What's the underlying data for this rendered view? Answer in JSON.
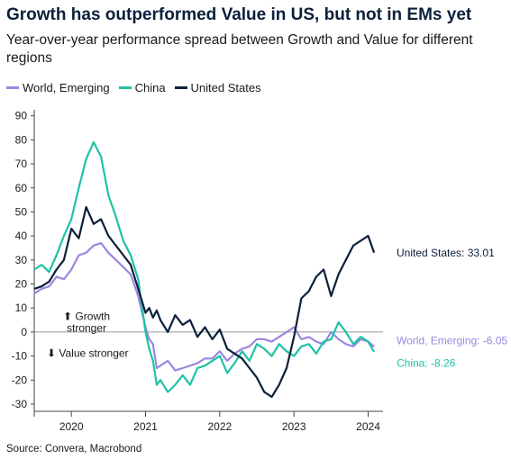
{
  "header": {
    "title": "Growth has outperformed Value in US, but not in EMs yet",
    "subtitle": "Year-over-year performance spread between Growth and Value for different regions",
    "source": "Source: Convera, Macrobond"
  },
  "chart_data": {
    "type": "line",
    "title": "Growth has outperformed Value in US, but not in EMs yet",
    "subtitle": "Year-over-year performance spread between Growth and Value for different regions",
    "xlabel": "",
    "ylabel": "",
    "xlim": [
      2019.5,
      2024.2
    ],
    "ylim": [
      -33,
      91
    ],
    "yticks": [
      90,
      80,
      70,
      60,
      50,
      40,
      30,
      20,
      10,
      0,
      -10,
      -20,
      -30
    ],
    "xticks": [
      "2020",
      "2021",
      "2022",
      "2023",
      "2024"
    ],
    "grid": false,
    "legend_position": "top-left",
    "annotations": {
      "growth_stronger": "Growth stronger",
      "value_stronger": "Value stronger",
      "us_end_label": "United States: 33.01",
      "em_end_label": "World, Emerging: -6.05",
      "china_end_label": "China: -8.26"
    },
    "series": [
      {
        "name": "World, Emerging",
        "color": "#9b87e0",
        "x": [
          2019.5,
          2019.6,
          2019.7,
          2019.8,
          2019.9,
          2020.0,
          2020.1,
          2020.2,
          2020.3,
          2020.4,
          2020.5,
          2020.6,
          2020.7,
          2020.8,
          2020.9,
          2021.0,
          2021.05,
          2021.1,
          2021.15,
          2021.2,
          2021.3,
          2021.4,
          2021.5,
          2021.6,
          2021.7,
          2021.8,
          2021.9,
          2022.0,
          2022.1,
          2022.2,
          2022.3,
          2022.4,
          2022.5,
          2022.6,
          2022.7,
          2022.8,
          2022.9,
          2023.0,
          2023.1,
          2023.2,
          2023.3,
          2023.4,
          2023.5,
          2023.6,
          2023.7,
          2023.8,
          2023.9,
          2024.0,
          2024.08
        ],
        "values": [
          16,
          18,
          19,
          23,
          22,
          26,
          32,
          33,
          36,
          37,
          33,
          30,
          27,
          24,
          15,
          2,
          -3,
          -5,
          -15,
          -14,
          -12,
          -16,
          -15,
          -14,
          -13,
          -11,
          -11,
          -8,
          -12,
          -9,
          -7,
          -6,
          -3,
          -3,
          -4,
          -2,
          0,
          2,
          -3,
          -2,
          -4,
          -5,
          0,
          -3,
          -5,
          -6,
          -3,
          -4,
          -6.05
        ]
      },
      {
        "name": "China",
        "color": "#1fc2a5",
        "x": [
          2019.5,
          2019.6,
          2019.7,
          2019.8,
          2019.9,
          2020.0,
          2020.1,
          2020.2,
          2020.3,
          2020.4,
          2020.5,
          2020.6,
          2020.7,
          2020.8,
          2020.9,
          2021.0,
          2021.05,
          2021.1,
          2021.15,
          2021.2,
          2021.3,
          2021.4,
          2021.5,
          2021.6,
          2021.7,
          2021.8,
          2021.9,
          2022.0,
          2022.1,
          2022.2,
          2022.3,
          2022.4,
          2022.5,
          2022.6,
          2022.7,
          2022.8,
          2022.9,
          2023.0,
          2023.1,
          2023.2,
          2023.3,
          2023.4,
          2023.5,
          2023.6,
          2023.7,
          2023.8,
          2023.9,
          2024.0,
          2024.08
        ],
        "values": [
          26,
          28,
          25,
          32,
          40,
          47,
          60,
          72,
          79,
          73,
          57,
          48,
          38,
          32,
          22,
          0,
          -7,
          -12,
          -22,
          -20,
          -25,
          -22,
          -18,
          -22,
          -15,
          -14,
          -12,
          -10,
          -17,
          -13,
          -8,
          -12,
          -5,
          -7,
          -10,
          -5,
          -8,
          -10,
          -6,
          -5,
          -9,
          -4,
          -3,
          4,
          0,
          -5,
          -2,
          -4,
          -8.26
        ]
      },
      {
        "name": "United States",
        "color": "#0b1f3a",
        "x": [
          2019.5,
          2019.6,
          2019.7,
          2019.8,
          2019.9,
          2020.0,
          2020.1,
          2020.2,
          2020.3,
          2020.4,
          2020.5,
          2020.6,
          2020.7,
          2020.8,
          2020.9,
          2021.0,
          2021.05,
          2021.1,
          2021.15,
          2021.2,
          2021.3,
          2021.4,
          2021.5,
          2021.6,
          2021.7,
          2021.8,
          2021.9,
          2022.0,
          2022.1,
          2022.2,
          2022.3,
          2022.4,
          2022.5,
          2022.6,
          2022.7,
          2022.8,
          2022.9,
          2023.0,
          2023.1,
          2023.2,
          2023.3,
          2023.4,
          2023.5,
          2023.6,
          2023.7,
          2023.8,
          2023.9,
          2024.0,
          2024.08
        ],
        "values": [
          18,
          19,
          21,
          26,
          30,
          43,
          39,
          52,
          45,
          47,
          40,
          36,
          32,
          28,
          18,
          8,
          10,
          6,
          9,
          5,
          0,
          7,
          3,
          5,
          -2,
          2,
          -3,
          1,
          -7,
          -9,
          -11,
          -15,
          -19,
          -25,
          -27,
          -22,
          -15,
          -2,
          14,
          17,
          23,
          26,
          15,
          24,
          30,
          36,
          38,
          40,
          33.01
        ]
      }
    ]
  }
}
